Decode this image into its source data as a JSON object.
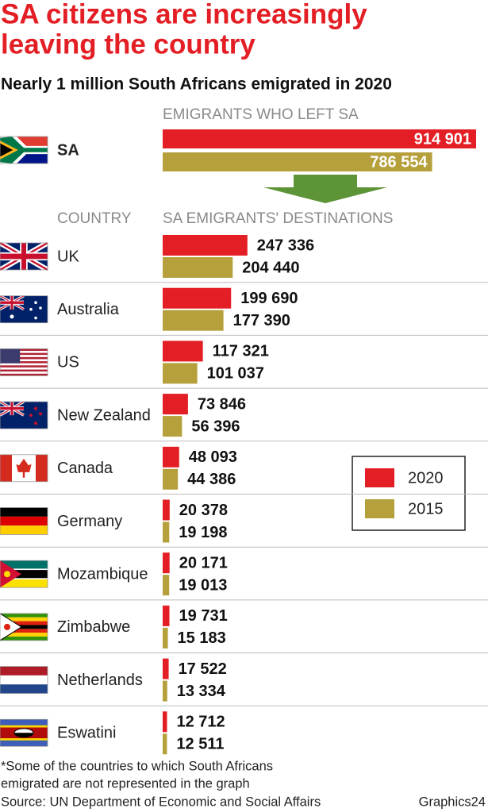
{
  "title": [
    "SA citizens are increasingly",
    "leaving the country"
  ],
  "subtitle": "Nearly 1 million South Africans emigrated in 2020",
  "chart_data": [
    {
      "type": "bar",
      "orientation": "horizontal",
      "title": "EMIGRANTS WHO LEFT SA",
      "categories": [
        "SA"
      ],
      "series": [
        {
          "color": "#e31e24",
          "values": [
            914901
          ],
          "value_labels": [
            "914 901"
          ]
        },
        {
          "color": "#b5a03c",
          "values": [
            786554
          ],
          "value_labels": [
            "786 554"
          ]
        }
      ]
    },
    {
      "type": "bar",
      "orientation": "horizontal",
      "title": "SA EMIGRANTS' DESTINATIONS",
      "category_title": "COUNTRY",
      "categories": [
        "UK",
        "Australia",
        "US",
        "New Zealand",
        "Canada",
        "Germany",
        "Mozambique",
        "Zimbabwe",
        "Netherlands",
        "Eswatini"
      ],
      "series": [
        {
          "name": "2020",
          "color": "#e31e24",
          "values": [
            247336,
            199690,
            117321,
            73846,
            48093,
            20378,
            20171,
            19731,
            17522,
            12712
          ],
          "value_labels": [
            "247 336",
            "199 690",
            "117 321",
            "73 846",
            "48 093",
            "20 378",
            "20 171",
            "19 731",
            "17 522",
            "12 712"
          ]
        },
        {
          "name": "2015",
          "color": "#b5a03c",
          "values": [
            204440,
            177390,
            101037,
            56396,
            44386,
            19198,
            19013,
            15183,
            13334,
            12511
          ],
          "value_labels": [
            "204 440",
            "177 390",
            "101 037",
            "56 396",
            "44 386",
            "19 198",
            "19 013",
            "15 183",
            "13 334",
            "12 511"
          ]
        }
      ],
      "legend": "right"
    }
  ],
  "notes": [
    "*Some of the countries to which South Africans",
    "emigrated are not represented in the graph"
  ],
  "source": "Source: UN Department of Economic and Social Affairs",
  "credit": "Graphics24"
}
